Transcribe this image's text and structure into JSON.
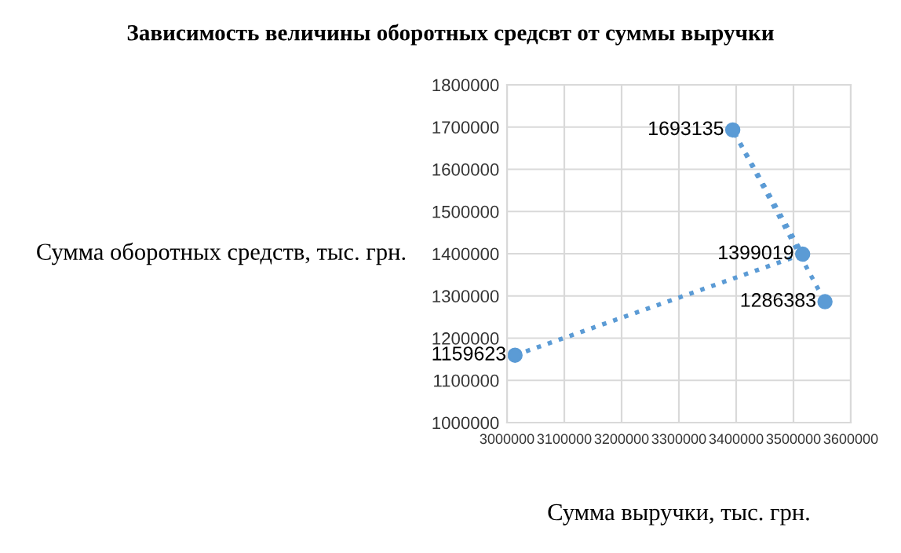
{
  "chart_data": {
    "type": "line",
    "title": "Зависимость величины оборотных средсвт от суммы выручки",
    "xlabel": "Сумма выручки, тыс. грн.",
    "ylabel": "Сумма оборотных средств, тыс. грн.",
    "x": [
      3014000,
      3516000,
      3394000,
      3555000
    ],
    "series": [
      {
        "color": "#5b9bd5",
        "values": [
          1159623,
          1399019,
          1693135,
          1286383
        ]
      }
    ],
    "xlim": [
      3000000,
      3600000
    ],
    "xticks": [
      3000000,
      3100000,
      3200000,
      3300000,
      3400000,
      3500000,
      3600000
    ],
    "ylim": [
      1000000,
      1800000
    ],
    "yticks": [
      1000000,
      1100000,
      1200000,
      1300000,
      1400000,
      1500000,
      1600000,
      1700000,
      1800000
    ],
    "grid": true,
    "marker": "circle",
    "line_style": "dotted",
    "data_labels": true,
    "legend": false
  }
}
